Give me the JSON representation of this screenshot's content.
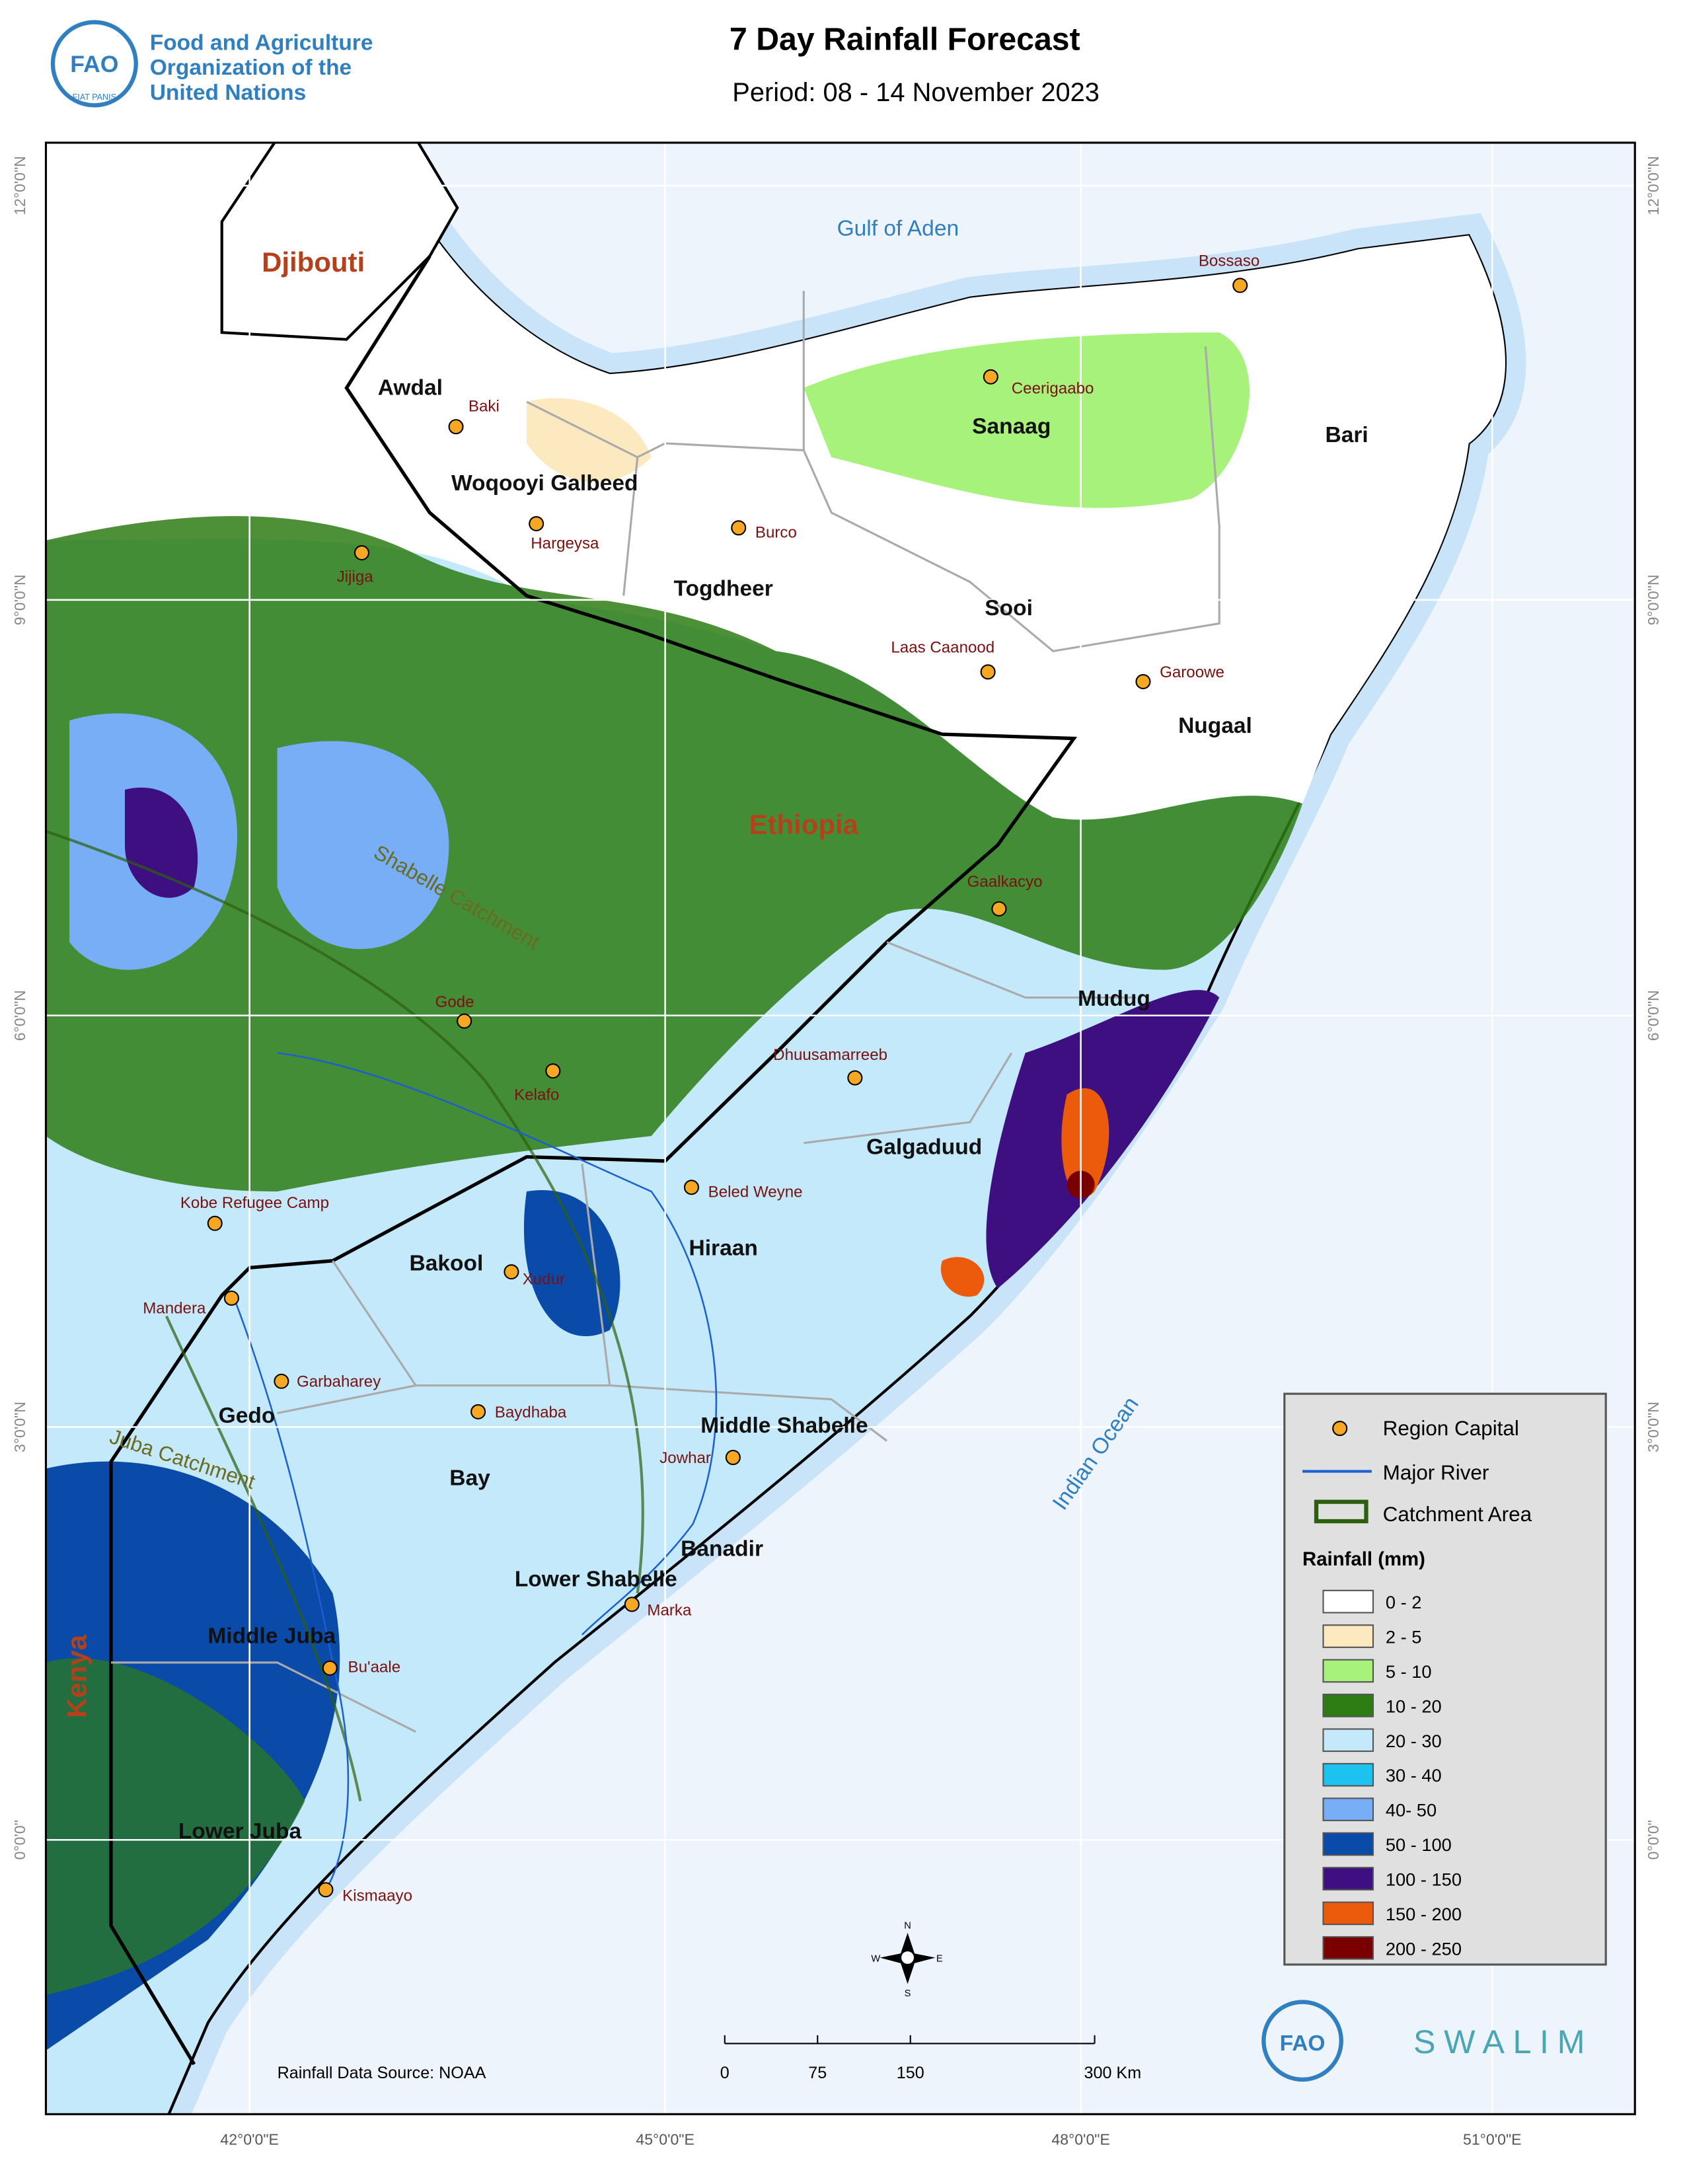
{
  "header": {
    "org": [
      "Food and Agriculture",
      "Organization of the",
      "United Nations"
    ],
    "title": "7 Day Rainfall Forecast",
    "period": "Period: 08 - 14 November 2023"
  },
  "map": {
    "countries": [
      "Djibouti",
      "Ethiopia",
      "Kenya"
    ],
    "water": [
      "Gulf of Aden",
      "Indian Ocean"
    ],
    "catchments": [
      "Shabelle Catchment",
      "Juba Catchment"
    ],
    "regions": [
      "Awdal",
      "Woqooyi Galbeed",
      "Togdheer",
      "Sanaag",
      "Bari",
      "Sooi",
      "Nugaal",
      "Mudug",
      "Galgaduud",
      "Hiraan",
      "Bakool",
      "Gedo",
      "Bay",
      "Middle Shabelle",
      "Banadir",
      "Lower Shabelle",
      "Middle Juba",
      "Lower Juba"
    ],
    "capitals": [
      "Baki",
      "Hargeysa",
      "Jijiga",
      "Burco",
      "Ceerigaabo",
      "Bossaso",
      "Laas Caanood",
      "Garoowe",
      "Gaalkacyo",
      "Dhuusamarreeb",
      "Gode",
      "Kelafo",
      "Beled Weyne",
      "Kobe Refugee Camp",
      "Xudur",
      "Mandera",
      "Garbaharey",
      "Baydhaba",
      "Jowhar",
      "Marka",
      "Bu'aale",
      "Kismaayo"
    ],
    "graticule": {
      "lon": [
        "42°0'0\"E",
        "45°0'0\"E",
        "48°0'0\"E",
        "51°0'0\"E"
      ],
      "lat": [
        "12°0'0\"N",
        "9°0'0\"N",
        "6°0'0\"N",
        "3°0'0\"N",
        "0°0'0\""
      ]
    },
    "source": "Rainfall Data Source: NOAA",
    "scale_bar": [
      "0",
      "75",
      "150",
      "300 Km"
    ],
    "compass": [
      "N",
      "E",
      "S",
      "W"
    ]
  },
  "legend": {
    "symbols": [
      "Region Capital",
      "Major River",
      "Catchment Area"
    ],
    "title": "Rainfall (mm)",
    "classes": [
      {
        "label": "0 - 2",
        "color": "#ffffff"
      },
      {
        "label": "2 - 5",
        "color": "#fde9bf"
      },
      {
        "label": "5 - 10",
        "color": "#a6f27a"
      },
      {
        "label": "10 - 20",
        "color": "#2e7d14"
      },
      {
        "label": "20 - 30",
        "color": "#c4e9fb"
      },
      {
        "label": "30 - 40",
        "color": "#1ec2f0"
      },
      {
        "label": "40- 50",
        "color": "#77aef5"
      },
      {
        "label": "50 - 100",
        "color": "#0a4aa8"
      },
      {
        "label": "100 - 150",
        "color": "#3d0f80"
      },
      {
        "label": "150 - 200",
        "color": "#ec5a0c"
      },
      {
        "label": "200 - 250",
        "color": "#7a0000"
      }
    ]
  },
  "logos": {
    "fao": "FAO",
    "motto": "FIAT PANIS",
    "swalim": "SWALIM"
  }
}
